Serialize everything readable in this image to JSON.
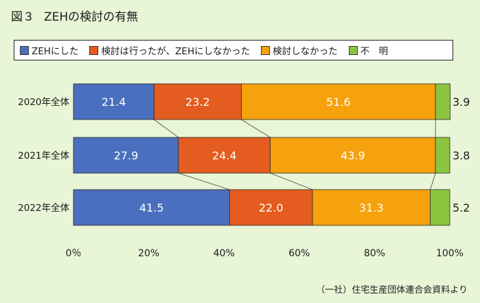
{
  "figure": {
    "number": "図３",
    "title": "ZEHの検討の有無",
    "source": "（一社）住宅生産団体連合会資料より"
  },
  "chart_data": {
    "type": "bar",
    "orientation": "horizontal",
    "stacked": true,
    "percent": true,
    "categories": [
      "2020年全体",
      "2021年全体",
      "2022年全体"
    ],
    "series": [
      {
        "name": "ZEHにした",
        "color": "#4a6fbe",
        "values": [
          21.4,
          27.9,
          41.5
        ]
      },
      {
        "name": "検討は行ったが、ZEHにしなかった",
        "color": "#e45c1f",
        "values": [
          23.2,
          24.4,
          22.0
        ]
      },
      {
        "name": "検討しなかった",
        "color": "#f5a20d",
        "values": [
          51.6,
          43.9,
          31.3
        ]
      },
      {
        "name": "不　明",
        "color": "#8bc53f",
        "values": [
          3.9,
          3.8,
          5.2
        ]
      }
    ],
    "xlim": [
      0,
      100
    ],
    "xticks": [
      "0％",
      "20%",
      "40%",
      "60%",
      "80%",
      "100%"
    ],
    "data_labels": [
      [
        "21.4",
        "23.2",
        "51.6",
        "3.9"
      ],
      [
        "27.9",
        "24.4",
        "43.9",
        "3.8"
      ],
      [
        "41.5",
        "22.0",
        "31.3",
        "5.2"
      ]
    ],
    "connector_lines": true,
    "grid": false,
    "legend_position": "top"
  },
  "legend": [
    {
      "label": "ZEHにした",
      "color": "#4a6fbe"
    },
    {
      "label": "検討は行ったが、ZEHにしなかった",
      "color": "#e45c1f"
    },
    {
      "label": "検討しなかった",
      "color": "#f5a20d"
    },
    {
      "label": "不　明",
      "color": "#8bc53f"
    }
  ]
}
